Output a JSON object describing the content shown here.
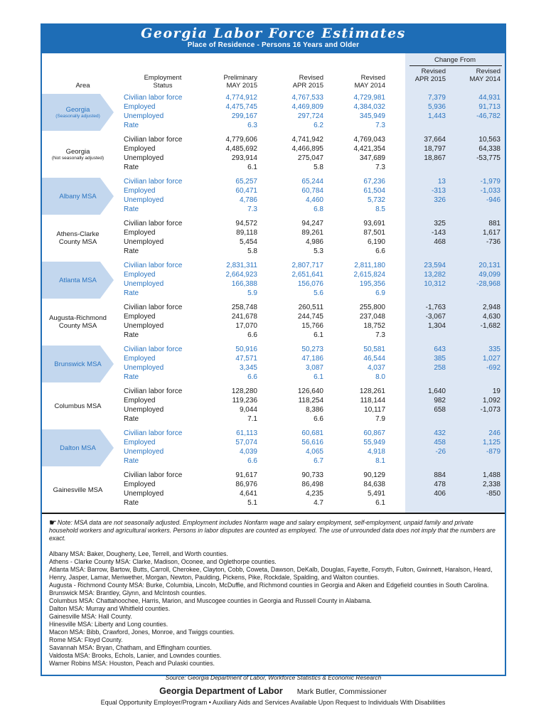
{
  "meta": {
    "colors": {
      "band_blue": "#1e6db6",
      "highlight_text_blue": "#2a74c0",
      "arrow_fill_blue": "#c3d7ee",
      "change_panel_bg": "#dde7f4",
      "body_text": "#1a1a1a"
    },
    "icons": {
      "note_hand_icon": "☛"
    }
  },
  "header": {
    "title": "Georgia Labor Force Estimates",
    "subtitle": "Place of Residence - Persons 16 Years and Older"
  },
  "table": {
    "headers": {
      "area": "Area",
      "status": [
        "Employment",
        "Status"
      ],
      "preliminary": [
        "Preliminary",
        "MAY 2015"
      ],
      "revised_apr": [
        "Revised",
        "APR 2015"
      ],
      "revised_may": [
        "Revised",
        "MAY 2014"
      ],
      "change_from": "Change From",
      "change_apr": [
        "Revised",
        "APR 2015"
      ],
      "change_may": [
        "Revised",
        "MAY 2014"
      ]
    },
    "areas": [
      {
        "name": "Georgia",
        "sub": "(Seasonally adjusted)",
        "highlighted": true,
        "rows": [
          {
            "label": "Civilian labor force",
            "values": [
              "4,774,912",
              "4,767,533",
              "4,729,981",
              "7,379",
              "44,931"
            ]
          },
          {
            "label": "Employed",
            "values": [
              "4,475,745",
              "4,469,809",
              "4,384,032",
              "5,936",
              "91,713"
            ]
          },
          {
            "label": "Unemployed",
            "values": [
              "299,167",
              "297,724",
              "345,949",
              "1,443",
              "-46,782"
            ]
          },
          {
            "label": "Rate",
            "values": [
              "6.3",
              "6.2",
              "7.3",
              "",
              ""
            ]
          }
        ]
      },
      {
        "name": "Georgia",
        "sub": "(Not seasonally adjusted)",
        "highlighted": false,
        "rows": [
          {
            "label": "Civilian labor force",
            "values": [
              "4,779,606",
              "4,741,942",
              "4,769,043",
              "37,664",
              "10,563"
            ]
          },
          {
            "label": "Employed",
            "values": [
              "4,485,692",
              "4,466,895",
              "4,421,354",
              "18,797",
              "64,338"
            ]
          },
          {
            "label": "Unemployed",
            "values": [
              "293,914",
              "275,047",
              "347,689",
              "18,867",
              "-53,775"
            ]
          },
          {
            "label": "Rate",
            "values": [
              "6.1",
              "5.8",
              "7.3",
              "",
              ""
            ]
          }
        ]
      },
      {
        "name": "Albany MSA",
        "sub": "",
        "highlighted": true,
        "rows": [
          {
            "label": "Civilian labor force",
            "values": [
              "65,257",
              "65,244",
              "67,236",
              "13",
              "-1,979"
            ]
          },
          {
            "label": "Employed",
            "values": [
              "60,471",
              "60,784",
              "61,504",
              "-313",
              "-1,033"
            ]
          },
          {
            "label": "Unemployed",
            "values": [
              "4,786",
              "4,460",
              "5,732",
              "326",
              "-946"
            ]
          },
          {
            "label": "Rate",
            "values": [
              "7.3",
              "6.8",
              "8.5",
              "",
              ""
            ]
          }
        ]
      },
      {
        "name": "Athens-Clarke County MSA",
        "sub": "",
        "highlighted": false,
        "rows": [
          {
            "label": "Civilian labor force",
            "values": [
              "94,572",
              "94,247",
              "93,691",
              "325",
              "881"
            ]
          },
          {
            "label": "Employed",
            "values": [
              "89,118",
              "89,261",
              "87,501",
              "-143",
              "1,617"
            ]
          },
          {
            "label": "Unemployed",
            "values": [
              "5,454",
              "4,986",
              "6,190",
              "468",
              "-736"
            ]
          },
          {
            "label": "Rate",
            "values": [
              "5.8",
              "5.3",
              "6.6",
              "",
              ""
            ]
          }
        ]
      },
      {
        "name": "Atlanta MSA",
        "sub": "",
        "highlighted": true,
        "rows": [
          {
            "label": "Civilian labor force",
            "values": [
              "2,831,311",
              "2,807,717",
              "2,811,180",
              "23,594",
              "20,131"
            ]
          },
          {
            "label": "Employed",
            "values": [
              "2,664,923",
              "2,651,641",
              "2,615,824",
              "13,282",
              "49,099"
            ]
          },
          {
            "label": "Unemployed",
            "values": [
              "166,388",
              "156,076",
              "195,356",
              "10,312",
              "-28,968"
            ]
          },
          {
            "label": "Rate",
            "values": [
              "5.9",
              "5.6",
              "6.9",
              "",
              ""
            ]
          }
        ]
      },
      {
        "name": "Augusta-Richmond County MSA",
        "sub": "",
        "highlighted": false,
        "rows": [
          {
            "label": "Civilian labor force",
            "values": [
              "258,748",
              "260,511",
              "255,800",
              "-1,763",
              "2,948"
            ]
          },
          {
            "label": "Employed",
            "values": [
              "241,678",
              "244,745",
              "237,048",
              "-3,067",
              "4,630"
            ]
          },
          {
            "label": "Unemployed",
            "values": [
              "17,070",
              "15,766",
              "18,752",
              "1,304",
              "-1,682"
            ]
          },
          {
            "label": "Rate",
            "values": [
              "6.6",
              "6.1",
              "7.3",
              "",
              ""
            ]
          }
        ]
      },
      {
        "name": "Brunswick MSA",
        "sub": "",
        "highlighted": true,
        "rows": [
          {
            "label": "Civilian labor force",
            "values": [
              "50,916",
              "50,273",
              "50,581",
              "643",
              "335"
            ]
          },
          {
            "label": "Employed",
            "values": [
              "47,571",
              "47,186",
              "46,544",
              "385",
              "1,027"
            ]
          },
          {
            "label": "Unemployed",
            "values": [
              "3,345",
              "3,087",
              "4,037",
              "258",
              "-692"
            ]
          },
          {
            "label": "Rate",
            "values": [
              "6.6",
              "6.1",
              "8.0",
              "",
              ""
            ]
          }
        ]
      },
      {
        "name": "Columbus MSA",
        "sub": "",
        "highlighted": false,
        "rows": [
          {
            "label": "Civilian labor force",
            "values": [
              "128,280",
              "126,640",
              "128,261",
              "1,640",
              "19"
            ]
          },
          {
            "label": "Employed",
            "values": [
              "119,236",
              "118,254",
              "118,144",
              "982",
              "1,092"
            ]
          },
          {
            "label": "Unemployed",
            "values": [
              "9,044",
              "8,386",
              "10,117",
              "658",
              "-1,073"
            ]
          },
          {
            "label": "Rate",
            "values": [
              "7.1",
              "6.6",
              "7.9",
              "",
              ""
            ]
          }
        ]
      },
      {
        "name": "Dalton MSA",
        "sub": "",
        "highlighted": true,
        "rows": [
          {
            "label": "Civilian labor force",
            "values": [
              "61,113",
              "60,681",
              "60,867",
              "432",
              "246"
            ]
          },
          {
            "label": "Employed",
            "values": [
              "57,074",
              "56,616",
              "55,949",
              "458",
              "1,125"
            ]
          },
          {
            "label": "Unemployed",
            "values": [
              "4,039",
              "4,065",
              "4,918",
              "-26",
              "-879"
            ]
          },
          {
            "label": "Rate",
            "values": [
              "6.6",
              "6.7",
              "8.1",
              "",
              ""
            ]
          }
        ]
      },
      {
        "name": "Gainesville MSA",
        "sub": "",
        "highlighted": false,
        "rows": [
          {
            "label": "Civilian labor force",
            "values": [
              "91,617",
              "90,733",
              "90,129",
              "884",
              "1,488"
            ]
          },
          {
            "label": "Employed",
            "values": [
              "86,976",
              "86,498",
              "84,638",
              "478",
              "2,338"
            ]
          },
          {
            "label": "Unemployed",
            "values": [
              "4,641",
              "4,235",
              "5,491",
              "406",
              "-850"
            ]
          },
          {
            "label": "Rate",
            "values": [
              "5.1",
              "4.7",
              "6.1",
              "",
              ""
            ]
          }
        ]
      }
    ]
  },
  "notes": {
    "note_text": "Note: MSA data are not seasonally adjusted. Employment includes Nonfarm wage and salary employment, self-employment, unpaid family and private household workers and agricultural workers. Persons in labor disputes are counted as employed. The use of unrounded data does not imply that the numbers are exact.",
    "msa_definitions": [
      "Albany MSA: Baker, Dougherty, Lee, Terrell, and Worth counties.",
      "Athens - Clarke County MSA: Clarke, Madison, Oconee, and Oglethorpe counties.",
      "Atlanta MSA: Barrow, Bartow, Butts, Carroll, Cherokee, Clayton, Cobb, Coweta, Dawson, DeKalb, Douglas, Fayette, Forsyth, Fulton, Gwinnett, Haralson, Heard, Henry, Jasper, Lamar, Meriwether, Morgan, Newton, Paulding, Pickens, Pike, Rockdale, Spalding, and Walton counties.",
      "Augusta - Richmond County MSA: Burke, Columbia, Lincoln, McDuffie, and Richmond counties in Georgia and Aiken and Edgefield counties in South Carolina.",
      "Brunswick MSA: Brantley, Glynn, and McIntosh counties.",
      "Columbus MSA: Chattahoochee, Harris, Marion, and Muscogee counties in Georgia and Russell County in Alabama.",
      "Dalton MSA: Murray and Whitfield counties.",
      "Gainesville MSA: Hall County.",
      "Hinesville MSA: Liberty and Long counties.",
      "Macon MSA: Bibb, Crawford, Jones, Monroe, and Twiggs counties.",
      "Rome MSA: Floyd County.",
      "Savannah MSA: Bryan, Chatham, and Effingham counties.",
      "Valdosta MSA: Brooks, Echols, Lanier, and Lowndes counties.",
      "Warner Robins MSA: Houston, Peach and Pulaski counties."
    ],
    "source": "Source:  Georgia Department of Labor, Workforce Statistics & Economic Research"
  },
  "footer": {
    "org": "Georgia Department of Labor",
    "commissioner": "Mark Butler, Commissioner",
    "eeo": "Equal Opportunity Employer/Program • Auxiliary Aids and Services Available Upon Request to Individuals With Disabilities"
  }
}
